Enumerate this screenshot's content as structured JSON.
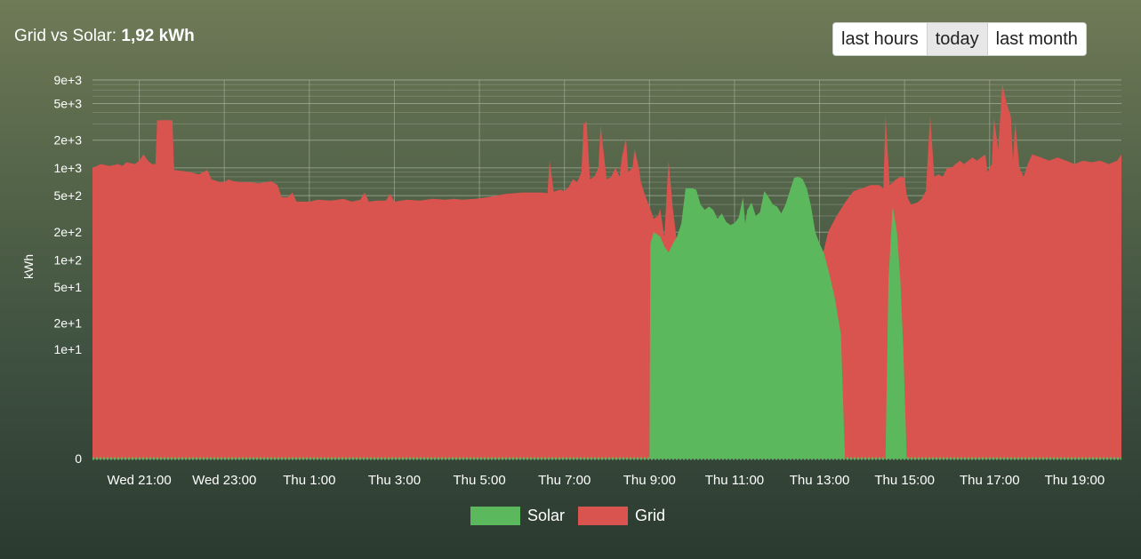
{
  "header": {
    "title_prefix": "Grid vs Solar:",
    "title_value": "1,92 kWh"
  },
  "range_buttons": [
    {
      "label": "last hours",
      "active": false
    },
    {
      "label": "today",
      "active": true
    },
    {
      "label": "last month",
      "active": false
    }
  ],
  "colors": {
    "solar": "#5cb85c",
    "grid": "#d9534f",
    "gridline": "#a9b2a0",
    "baseline": "#5cb85c"
  },
  "chart_data": {
    "type": "area",
    "ylabel": "kWh",
    "yscale": "symlog",
    "ylim": [
      0,
      9000
    ],
    "xlim": [
      19.9,
      44.1
    ],
    "grid": true,
    "legend_position": "bottom-center",
    "y_ticks": [
      {
        "value": 0,
        "label": "0"
      },
      {
        "value": 10,
        "label": "1e+1"
      },
      {
        "value": 20,
        "label": "2e+1"
      },
      {
        "value": 50,
        "label": "5e+1"
      },
      {
        "value": 100,
        "label": "1e+2"
      },
      {
        "value": 200,
        "label": "2e+2"
      },
      {
        "value": 500,
        "label": "5e+2"
      },
      {
        "value": 1000,
        "label": "1e+3"
      },
      {
        "value": 2000,
        "label": "2e+3"
      },
      {
        "value": 5000,
        "label": "5e+3"
      },
      {
        "value": 9000,
        "label": "9e+3"
      }
    ],
    "x_ticks": [
      {
        "value": 21,
        "label": "Wed 21:00"
      },
      {
        "value": 23,
        "label": "Wed 23:00"
      },
      {
        "value": 25,
        "label": "Thu 1:00"
      },
      {
        "value": 27,
        "label": "Thu 3:00"
      },
      {
        "value": 29,
        "label": "Thu 5:00"
      },
      {
        "value": 31,
        "label": "Thu 7:00"
      },
      {
        "value": 33,
        "label": "Thu 9:00"
      },
      {
        "value": 35,
        "label": "Thu 11:00"
      },
      {
        "value": 37,
        "label": "Thu 13:00"
      },
      {
        "value": 39,
        "label": "Thu 15:00"
      },
      {
        "value": 41,
        "label": "Thu 17:00"
      },
      {
        "value": 43,
        "label": "Thu 19:00"
      }
    ],
    "series": [
      {
        "name": "Grid",
        "points": [
          [
            19.9,
            1000
          ],
          [
            20.1,
            1100
          ],
          [
            20.3,
            1050
          ],
          [
            20.5,
            1100
          ],
          [
            20.6,
            1050
          ],
          [
            20.7,
            1150
          ],
          [
            20.9,
            1100
          ],
          [
            21.0,
            1200
          ],
          [
            21.1,
            1400
          ],
          [
            21.2,
            1200
          ],
          [
            21.3,
            1100
          ],
          [
            21.38,
            1100
          ],
          [
            21.42,
            3300
          ],
          [
            21.6,
            3300
          ],
          [
            21.7,
            3300
          ],
          [
            21.78,
            3300
          ],
          [
            21.82,
            950
          ],
          [
            22.0,
            930
          ],
          [
            22.2,
            900
          ],
          [
            22.4,
            850
          ],
          [
            22.6,
            950
          ],
          [
            22.7,
            750
          ],
          [
            22.9,
            700
          ],
          [
            23.0,
            700
          ],
          [
            23.1,
            750
          ],
          [
            23.2,
            720
          ],
          [
            23.4,
            700
          ],
          [
            23.6,
            700
          ],
          [
            23.8,
            680
          ],
          [
            24.0,
            700
          ],
          [
            24.1,
            720
          ],
          [
            24.25,
            650
          ],
          [
            24.35,
            480
          ],
          [
            24.5,
            480
          ],
          [
            24.6,
            540
          ],
          [
            24.7,
            430
          ],
          [
            25.0,
            430
          ],
          [
            25.2,
            450
          ],
          [
            25.5,
            440
          ],
          [
            25.8,
            460
          ],
          [
            26.0,
            430
          ],
          [
            26.2,
            450
          ],
          [
            26.3,
            540
          ],
          [
            26.4,
            430
          ],
          [
            26.6,
            440
          ],
          [
            26.8,
            440
          ],
          [
            26.9,
            520
          ],
          [
            27.0,
            430
          ],
          [
            27.3,
            450
          ],
          [
            27.6,
            440
          ],
          [
            27.9,
            460
          ],
          [
            28.2,
            450
          ],
          [
            28.4,
            460
          ],
          [
            28.6,
            450
          ],
          [
            28.9,
            460
          ],
          [
            29.2,
            480
          ],
          [
            29.4,
            500
          ],
          [
            29.6,
            520
          ],
          [
            29.8,
            530
          ],
          [
            30.0,
            540
          ],
          [
            30.3,
            540
          ],
          [
            30.5,
            540
          ],
          [
            30.6,
            530
          ],
          [
            30.65,
            1200
          ],
          [
            30.75,
            550
          ],
          [
            30.9,
            580
          ],
          [
            31.0,
            560
          ],
          [
            31.1,
            620
          ],
          [
            31.2,
            750
          ],
          [
            31.3,
            700
          ],
          [
            31.4,
            900
          ],
          [
            31.45,
            3000
          ],
          [
            31.52,
            3200
          ],
          [
            31.6,
            750
          ],
          [
            31.7,
            800
          ],
          [
            31.8,
            1000
          ],
          [
            31.85,
            2900
          ],
          [
            31.92,
            1500
          ],
          [
            31.98,
            850
          ],
          [
            32.0,
            750
          ],
          [
            32.1,
            800
          ],
          [
            32.2,
            1000
          ],
          [
            32.3,
            800
          ],
          [
            32.35,
            1300
          ],
          [
            32.45,
            2100
          ],
          [
            32.5,
            900
          ],
          [
            32.6,
            1000
          ],
          [
            32.65,
            1600
          ],
          [
            32.75,
            1000
          ],
          [
            32.8,
            700
          ],
          [
            32.9,
            500
          ],
          [
            33.0,
            380
          ],
          [
            33.1,
            280
          ],
          [
            33.2,
            300
          ],
          [
            33.25,
            360
          ],
          [
            33.35,
            180
          ],
          [
            33.45,
            1200
          ],
          [
            33.55,
            360
          ],
          [
            33.65,
            150
          ],
          [
            33.75,
            120
          ],
          [
            33.8,
            150
          ],
          [
            33.9,
            100
          ],
          [
            34.0,
            90
          ],
          [
            34.3,
            80
          ],
          [
            34.6,
            70
          ],
          [
            35.0,
            60
          ],
          [
            35.4,
            60
          ],
          [
            35.8,
            60
          ],
          [
            36.2,
            60
          ],
          [
            36.6,
            60
          ],
          [
            37.0,
            80
          ],
          [
            37.2,
            200
          ],
          [
            37.4,
            300
          ],
          [
            37.6,
            420
          ],
          [
            37.8,
            560
          ],
          [
            38.0,
            600
          ],
          [
            38.2,
            650
          ],
          [
            38.4,
            650
          ],
          [
            38.5,
            600
          ],
          [
            38.55,
            3800
          ],
          [
            38.65,
            650
          ],
          [
            38.8,
            750
          ],
          [
            38.9,
            800
          ],
          [
            39.0,
            780
          ],
          [
            39.05,
            500
          ],
          [
            39.15,
            400
          ],
          [
            39.3,
            420
          ],
          [
            39.4,
            460
          ],
          [
            39.5,
            560
          ],
          [
            39.6,
            3700
          ],
          [
            39.7,
            800
          ],
          [
            39.8,
            850
          ],
          [
            39.9,
            800
          ],
          [
            40.0,
            1000
          ],
          [
            40.1,
            1000
          ],
          [
            40.2,
            1100
          ],
          [
            40.3,
            1200
          ],
          [
            40.4,
            1100
          ],
          [
            40.5,
            1200
          ],
          [
            40.6,
            1300
          ],
          [
            40.7,
            1200
          ],
          [
            40.8,
            1300
          ],
          [
            40.9,
            1400
          ],
          [
            40.95,
            900
          ],
          [
            41.05,
            1100
          ],
          [
            41.1,
            3500
          ],
          [
            41.2,
            1600
          ],
          [
            41.3,
            8200
          ],
          [
            41.4,
            5000
          ],
          [
            41.5,
            3600
          ],
          [
            41.55,
            1200
          ],
          [
            41.6,
            3200
          ],
          [
            41.7,
            1000
          ],
          [
            41.8,
            800
          ],
          [
            41.9,
            1100
          ],
          [
            42.0,
            1400
          ],
          [
            42.2,
            1300
          ],
          [
            42.4,
            1200
          ],
          [
            42.6,
            1300
          ],
          [
            42.8,
            1200
          ],
          [
            43.0,
            1100
          ],
          [
            43.2,
            1200
          ],
          [
            43.4,
            1150
          ],
          [
            43.6,
            1200
          ],
          [
            43.8,
            1100
          ],
          [
            44.0,
            1200
          ],
          [
            44.1,
            1400
          ]
        ]
      },
      {
        "name": "Solar",
        "points": [
          [
            33.0,
            0
          ],
          [
            33.02,
            150
          ],
          [
            33.1,
            200
          ],
          [
            33.25,
            180
          ],
          [
            33.35,
            140
          ],
          [
            33.45,
            120
          ],
          [
            33.55,
            150
          ],
          [
            33.65,
            180
          ],
          [
            33.75,
            250
          ],
          [
            33.85,
            600
          ],
          [
            34.0,
            600
          ],
          [
            34.1,
            580
          ],
          [
            34.2,
            400
          ],
          [
            34.3,
            350
          ],
          [
            34.4,
            380
          ],
          [
            34.5,
            350
          ],
          [
            34.6,
            280
          ],
          [
            34.7,
            320
          ],
          [
            34.8,
            260
          ],
          [
            34.9,
            240
          ],
          [
            35.0,
            250
          ],
          [
            35.1,
            290
          ],
          [
            35.2,
            480
          ],
          [
            35.25,
            250
          ],
          [
            35.3,
            350
          ],
          [
            35.4,
            420
          ],
          [
            35.5,
            300
          ],
          [
            35.6,
            330
          ],
          [
            35.7,
            560
          ],
          [
            35.8,
            480
          ],
          [
            35.9,
            400
          ],
          [
            36.0,
            380
          ],
          [
            36.1,
            320
          ],
          [
            36.2,
            400
          ],
          [
            36.3,
            560
          ],
          [
            36.4,
            780
          ],
          [
            36.5,
            800
          ],
          [
            36.6,
            760
          ],
          [
            36.7,
            600
          ],
          [
            36.8,
            380
          ],
          [
            36.9,
            200
          ],
          [
            37.0,
            150
          ],
          [
            37.1,
            120
          ],
          [
            37.2,
            80
          ],
          [
            37.35,
            40
          ],
          [
            37.5,
            15
          ],
          [
            37.6,
            0
          ],
          [
            38.3,
            0
          ],
          [
            38.55,
            0
          ],
          [
            38.62,
            60
          ],
          [
            38.72,
            380
          ],
          [
            38.82,
            200
          ],
          [
            38.9,
            60
          ],
          [
            38.97,
            10
          ],
          [
            39.05,
            0
          ]
        ]
      }
    ]
  }
}
